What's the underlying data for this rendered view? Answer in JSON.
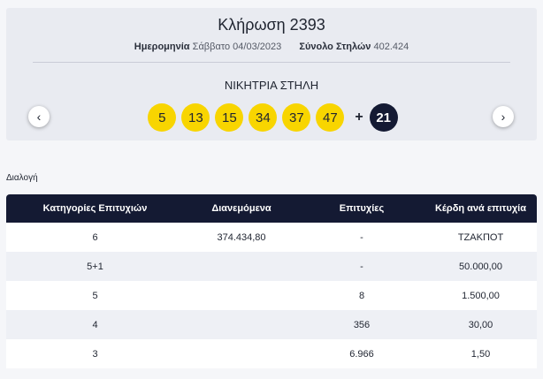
{
  "draw": {
    "title": "Κλήρωση 2393",
    "date_label": "Ημερομηνία",
    "date_value": "Σάββατο 04/03/2023",
    "columns_label": "Σύνολο Στηλών",
    "columns_value": "402.424",
    "winning_label": "ΝΙΚΗΤΡΙΑ ΣΤΗΛΗ",
    "numbers": [
      "5",
      "13",
      "15",
      "34",
      "37",
      "47"
    ],
    "plus": "+",
    "bonus": "21",
    "prev_arrow": "‹",
    "next_arrow": "›",
    "ball_color": "#f8d500",
    "bonus_color": "#141a33"
  },
  "section_label": "Διαλογή",
  "table": {
    "headers": [
      "Κατηγορίες Επιτυχιών",
      "Διανεμόμενα",
      "Επιτυχίες",
      "Κέρδη ανά επιτυχία"
    ],
    "rows": [
      [
        "6",
        "374.434,80",
        "-",
        "ΤΖΑΚΠΟΤ"
      ],
      [
        "5+1",
        "",
        "-",
        "50.000,00"
      ],
      [
        "5",
        "",
        "8",
        "1.500,00"
      ],
      [
        "4",
        "",
        "356",
        "30,00"
      ],
      [
        "3",
        "",
        "6.966",
        "1,50"
      ]
    ]
  }
}
